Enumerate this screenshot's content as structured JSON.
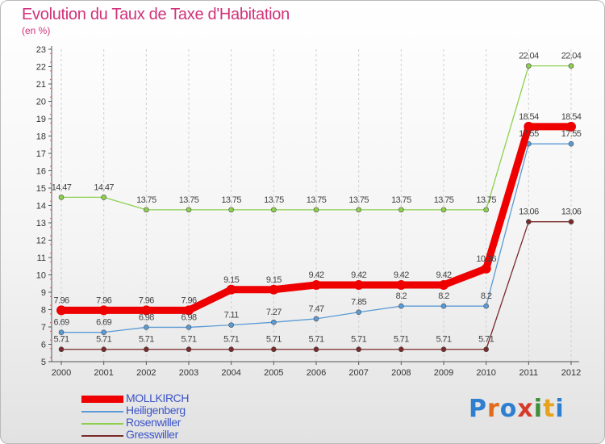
{
  "header": {
    "title": "Evolution du Taux de Taxe d'Habitation",
    "subtitle": "(en %)"
  },
  "chart_data": {
    "type": "line",
    "title": "Evolution du Taux de Taxe d'Habitation",
    "ylabel": "(en %)",
    "xlabel": "",
    "x": [
      "2000",
      "2001",
      "2002",
      "2003",
      "2004",
      "2005",
      "2006",
      "2007",
      "2008",
      "2009",
      "2010",
      "2011",
      "2012"
    ],
    "ylim": [
      5,
      23
    ],
    "ytick_step": 1,
    "grid": "vertical dashed",
    "legend": "bottom-left",
    "series": [
      {
        "name": "Rosenwiller",
        "color": "#8ed04e",
        "values": [
          14.47,
          14.47,
          13.75,
          13.75,
          13.75,
          13.75,
          13.75,
          13.75,
          13.75,
          13.75,
          13.75,
          22.04,
          22.04
        ],
        "labels": [
          "14.47",
          "14.47",
          "13.75",
          "13.75",
          "13.75",
          "13.75",
          "13.75",
          "13.75",
          "13.75",
          "13.75",
          "13.75",
          "22.04",
          "22.04"
        ]
      },
      {
        "name": "MOLLKIRCH",
        "color": "#ee0000",
        "values": [
          7.96,
          7.96,
          7.96,
          7.96,
          9.15,
          9.15,
          9.42,
          9.42,
          9.42,
          9.42,
          10.36,
          18.54,
          18.54
        ],
        "labels": [
          "7.96",
          "7.96",
          "7.96",
          "7.96",
          "9.15",
          "9.15",
          "9.42",
          "9.42",
          "9.42",
          "9.42",
          "10.36",
          "18.54",
          "18.54"
        ]
      },
      {
        "name": "Heiligenberg",
        "color": "#5b9bd5",
        "values": [
          6.69,
          6.69,
          6.98,
          6.98,
          7.11,
          7.27,
          7.47,
          7.85,
          8.2,
          8.2,
          8.2,
          17.55,
          17.55
        ],
        "labels": [
          "6.69",
          "6.69",
          "6.98",
          "6.98",
          "7.11",
          "7.27",
          "7.47",
          "7.85",
          "8.2",
          "8.2",
          "8.2",
          "17.55",
          "17.55"
        ]
      },
      {
        "name": "Gresswiller",
        "color": "#7a2a2a",
        "values": [
          5.71,
          5.71,
          5.71,
          5.71,
          5.71,
          5.71,
          5.71,
          5.71,
          5.71,
          5.71,
          5.71,
          13.06,
          13.06
        ],
        "labels": [
          "5.71",
          "5.71",
          "5.71",
          "5.71",
          "5.71",
          "5.71",
          "5.71",
          "5.71",
          "5.71",
          "5.71",
          "5.71",
          "13.06",
          "13.06"
        ]
      }
    ]
  },
  "legend": {
    "items": [
      {
        "name": "MOLLKIRCH",
        "color": "#ee0000"
      },
      {
        "name": "Heiligenberg",
        "color": "#5b9bd5"
      },
      {
        "name": "Rosenwiller",
        "color": "#8ed04e"
      },
      {
        "name": "Gresswiller",
        "color": "#7a2a2a"
      }
    ]
  },
  "logo": {
    "letters": [
      "P",
      "r",
      "o",
      "x",
      "i",
      "t",
      "i"
    ],
    "colors": [
      "#2f7fd0",
      "#e06b1a",
      "#2f7fd0",
      "#d63a2a",
      "#3f8f3a",
      "#e6a21a",
      "#2f7fd0"
    ]
  }
}
